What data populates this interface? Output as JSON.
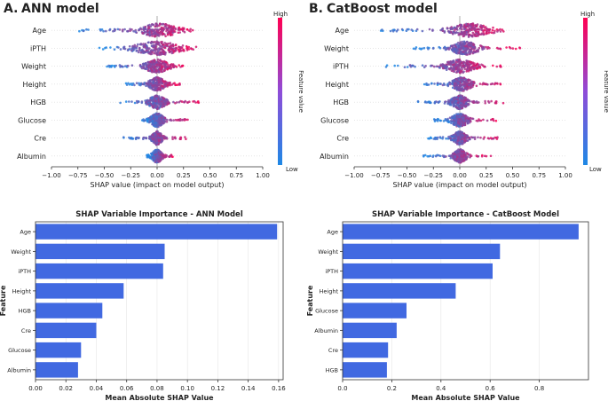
{
  "panels": {
    "a": {
      "letter": "A.",
      "title": "ANN model"
    },
    "b": {
      "letter": "B.",
      "title": "CatBoost model"
    }
  },
  "colorbar": {
    "high": "High",
    "low": "Low",
    "label": "Feature value"
  },
  "colors": {
    "low": "#1e88e5",
    "high": "#ff0052",
    "bar": "#4169e1",
    "zero_line": "#999999"
  },
  "chart_data": [
    {
      "id": "shap_ann",
      "type": "scatter",
      "subtype": "beeswarm",
      "title": "ANN model",
      "xlabel": "SHAP value (impact on model output)",
      "xlim": [
        -1.0,
        1.0
      ],
      "xticks": [
        "−1.00",
        "−0.75",
        "−0.50",
        "−0.25",
        "0.00",
        "0.25",
        "0.50",
        "0.75",
        "1.00"
      ],
      "xtick_values": [
        -1.0,
        -0.75,
        -0.5,
        -0.25,
        0.0,
        0.25,
        0.5,
        0.75,
        1.0
      ],
      "features": [
        {
          "name": "Age",
          "min": -0.75,
          "max": 0.38,
          "spread": 0.11,
          "center": 0.02
        },
        {
          "name": "iPTH",
          "min": -0.55,
          "max": 0.37,
          "spread": 0.14,
          "center": 0.0
        },
        {
          "name": "Weight",
          "min": -0.48,
          "max": 0.27,
          "spread": 0.07,
          "center": 0.0
        },
        {
          "name": "Height",
          "min": -0.3,
          "max": 0.22,
          "spread": 0.05,
          "center": 0.0
        },
        {
          "name": "HGB",
          "min": -0.35,
          "max": 0.4,
          "spread": 0.05,
          "center": 0.0
        },
        {
          "name": "Glucose",
          "min": -0.15,
          "max": 0.3,
          "spread": 0.04,
          "center": 0.0
        },
        {
          "name": "Cre",
          "min": -0.32,
          "max": 0.3,
          "spread": 0.03,
          "center": 0.0
        },
        {
          "name": "Albumin",
          "min": -0.1,
          "max": 0.15,
          "spread": 0.03,
          "center": 0.0
        }
      ]
    },
    {
      "id": "shap_catboost",
      "type": "scatter",
      "subtype": "beeswarm",
      "title": "CatBoost model",
      "xlabel": "SHAP value (impact on model output)",
      "xlim": [
        -1.0,
        1.0
      ],
      "xticks": [
        "−1.00",
        "−0.75",
        "−0.50",
        "−0.25",
        "0.00",
        "0.25",
        "0.50",
        "0.75",
        "1.00"
      ],
      "xtick_values": [
        -1.0,
        -0.75,
        -0.5,
        -0.25,
        0.0,
        0.25,
        0.5,
        0.75,
        1.0
      ],
      "features": [
        {
          "name": "Age",
          "min": -0.75,
          "max": 0.5,
          "spread": 0.12,
          "center": 0.1
        },
        {
          "name": "Weight",
          "min": -0.45,
          "max": 0.58,
          "spread": 0.08,
          "center": 0.05
        },
        {
          "name": "iPTH",
          "min": -0.7,
          "max": 0.4,
          "spread": 0.09,
          "center": 0.0
        },
        {
          "name": "Height",
          "min": -0.35,
          "max": 0.4,
          "spread": 0.06,
          "center": 0.02
        },
        {
          "name": "HGB",
          "min": -0.4,
          "max": 0.45,
          "spread": 0.05,
          "center": 0.0
        },
        {
          "name": "Glucose",
          "min": -0.25,
          "max": 0.35,
          "spread": 0.05,
          "center": 0.0
        },
        {
          "name": "Cre",
          "min": -0.3,
          "max": 0.4,
          "spread": 0.04,
          "center": 0.0
        },
        {
          "name": "Albumin",
          "min": -0.35,
          "max": 0.3,
          "spread": 0.04,
          "center": 0.0
        }
      ]
    },
    {
      "id": "imp_ann",
      "type": "bar",
      "orientation": "horizontal",
      "title": "SHAP Variable Importance - ANN Model",
      "xlabel": "Mean Absolute SHAP Value",
      "ylabel": "Feature",
      "xlim": [
        0,
        0.163
      ],
      "xticks": [
        "0.00",
        "0.02",
        "0.04",
        "0.06",
        "0.08",
        "0.10",
        "0.12",
        "0.14",
        "0.16"
      ],
      "xtick_values": [
        0,
        0.02,
        0.04,
        0.06,
        0.08,
        0.1,
        0.12,
        0.14,
        0.16
      ],
      "categories": [
        "Age",
        "Weight",
        "iPTH",
        "Height",
        "HGB",
        "Cre",
        "Glucose",
        "Albumin"
      ],
      "values": [
        0.159,
        0.085,
        0.084,
        0.058,
        0.044,
        0.04,
        0.03,
        0.028
      ]
    },
    {
      "id": "imp_catboost",
      "type": "bar",
      "orientation": "horizontal",
      "title": "SHAP Variable Importance - CatBoost Model",
      "xlabel": "Mean Absolute SHAP Value",
      "ylabel": "Feature",
      "xlim": [
        0,
        1.0
      ],
      "xticks": [
        "0.0",
        "0.2",
        "0.4",
        "0.6",
        "0.8"
      ],
      "xtick_values": [
        0,
        0.2,
        0.4,
        0.6,
        0.8
      ],
      "categories": [
        "Age",
        "Weight",
        "iPTH",
        "Height",
        "Glucose",
        "Albumin",
        "Cre",
        "HGB"
      ],
      "values": [
        0.96,
        0.64,
        0.61,
        0.46,
        0.26,
        0.22,
        0.185,
        0.18
      ]
    }
  ]
}
